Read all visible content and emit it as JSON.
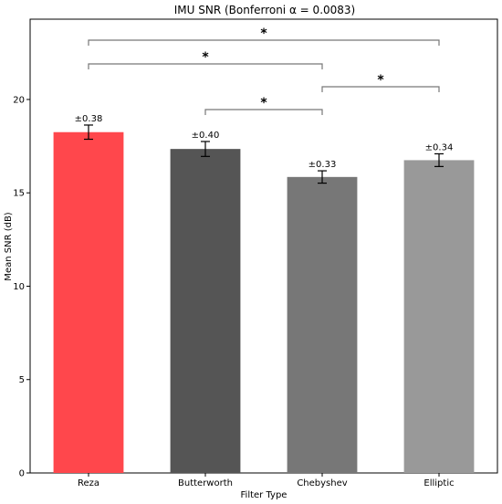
{
  "chart_data": {
    "type": "bar",
    "title": "IMU SNR  (Bonferroni α = 0.0083)",
    "xlabel": "Filter Type",
    "ylabel": "Mean SNR (dB)",
    "categories": [
      "Reza",
      "Butterworth",
      "Chebyshev",
      "Elliptic"
    ],
    "values": [
      18.25,
      17.35,
      15.85,
      16.75
    ],
    "errors": [
      0.38,
      0.4,
      0.33,
      0.34
    ],
    "error_labels": [
      "±0.38",
      "±0.40",
      "±0.33",
      "±0.34"
    ],
    "colors": [
      "#ff474c",
      "#555555",
      "#777777",
      "#999999"
    ],
    "ylim": [
      0,
      24.3
    ],
    "yticks": [
      0,
      5,
      10,
      15,
      20
    ],
    "ytick_labels": [
      "0",
      "5",
      "10",
      "15",
      "20"
    ],
    "grid": false,
    "significance": [
      {
        "from": "Reza",
        "to": "Elliptic",
        "label": "*"
      },
      {
        "from": "Reza",
        "to": "Chebyshev",
        "label": "*"
      },
      {
        "from": "Chebyshev",
        "to": "Elliptic",
        "label": "*"
      },
      {
        "from": "Butterworth",
        "to": "Chebyshev",
        "label": "*"
      }
    ]
  }
}
